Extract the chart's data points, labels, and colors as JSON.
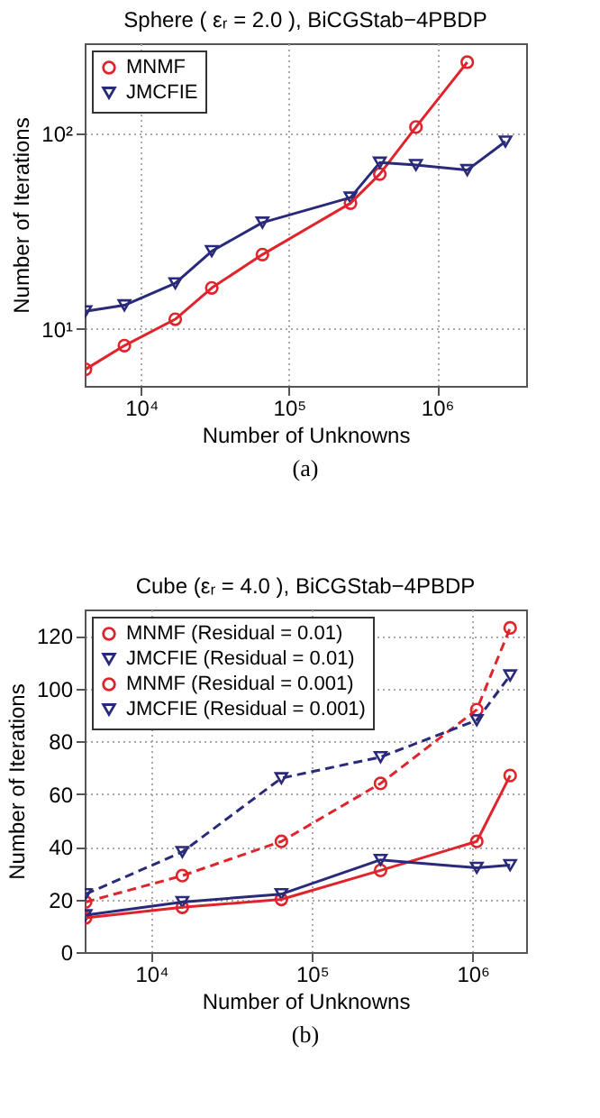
{
  "chart_data": [
    {
      "type": "line",
      "title": "Sphere ( εᵣ = 2.0 ), BiCGStab−4PBDP",
      "xlabel": "Number of Unknowns",
      "ylabel": "Number of Iterations",
      "annotations": [
        "(a)"
      ],
      "log": "xy",
      "grid": true,
      "legend": "top left",
      "xlim": [
        4150,
        4000000
      ],
      "ylim": [
        5.1,
        290
      ],
      "xticks": [
        {
          "value": 10000,
          "label": "10⁴"
        },
        {
          "value": 100000,
          "label": "10⁵"
        },
        {
          "value": 1000000,
          "label": "10⁶"
        }
      ],
      "yticks": [
        {
          "value": 10,
          "label": "10¹"
        },
        {
          "value": 100,
          "label": "10²"
        }
      ],
      "x": [
        4200,
        7700,
        17000,
        30000,
        66000,
        260000,
        410000,
        720000,
        1600000,
        2900000
      ],
      "series": [
        {
          "name": "MNMF",
          "color": "#e0242b",
          "marker": "circle",
          "line_style": "solid",
          "values": [
            6.2,
            8.2,
            11.2,
            16.2,
            24,
            44,
            62,
            108,
            232,
            null
          ]
        },
        {
          "name": "JMCFIE",
          "color": "#2a2a7a",
          "marker": "triangle",
          "line_style": "solid",
          "values": [
            12.3,
            13.2,
            17.1,
            25,
            35,
            47,
            71,
            69,
            65,
            91
          ]
        }
      ]
    },
    {
      "type": "line",
      "title": "Cube (εᵣ = 4.0 ), BiCGStab−4PBDP",
      "xlabel": "Number of Unknowns",
      "ylabel": "Number of Iterations",
      "annotations": [
        "(b)"
      ],
      "log": "x",
      "grid": true,
      "legend": "top left",
      "xlim": [
        3850,
        2150000
      ],
      "ylim": [
        0,
        130
      ],
      "xticks": [
        {
          "value": 10000,
          "label": "10⁴"
        },
        {
          "value": 100000,
          "label": "10⁵"
        },
        {
          "value": 1000000,
          "label": "10⁶"
        }
      ],
      "yticks": [
        0,
        20,
        40,
        60,
        80,
        100,
        120
      ],
      "x": [
        3900,
        15600,
        64500,
        267000,
        1060000,
        1710000
      ],
      "series": [
        {
          "name": "MNMF (Residual = 0.01)",
          "color": "#e0242b",
          "marker": "circle",
          "line_style": "solid",
          "values": [
            13,
            17,
            20,
            31,
            42,
            67
          ]
        },
        {
          "name": "JMCFIE (Residual = 0.01)",
          "color": "#2a2a7a",
          "marker": "triangle",
          "line_style": "solid",
          "values": [
            14,
            19,
            22,
            35,
            32,
            33
          ]
        },
        {
          "name": "MNMF (Residual = 0.001)",
          "color": "#e0242b",
          "marker": "circle",
          "line_style": "dashed",
          "values": [
            19,
            29,
            42,
            64,
            92,
            123
          ]
        },
        {
          "name": "JMCFIE (Residual = 0.001)",
          "color": "#2a2a7a",
          "marker": "triangle",
          "line_style": "dashed",
          "values": [
            22,
            38,
            66,
            74,
            88,
            105
          ]
        }
      ]
    }
  ]
}
